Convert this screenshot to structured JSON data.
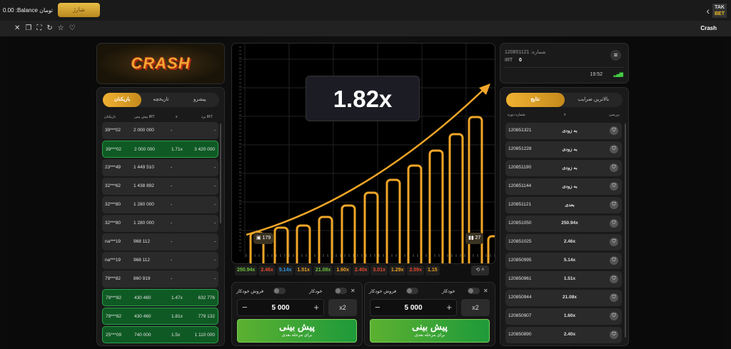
{
  "topbar": {
    "balance": "0.00 :Balance تومان",
    "deposit": "شارژ",
    "logo_top": "TAK",
    "logo_bottom": "BET"
  },
  "toolbar": {
    "game_name": "Crash",
    "icons": [
      "close-icon",
      "copy-icon",
      "fullscreen-icon",
      "refresh-icon",
      "star-icon",
      "heart-icon"
    ]
  },
  "logo_text": "CRASH",
  "players": {
    "tabs": [
      "پیشرو",
      "تاریخچه",
      "بازیکنان"
    ],
    "active_tab": "بازیکنان",
    "headers": {
      "player": "بازیکنان",
      "bet": "پیش بینی IRT",
      "x": "x",
      "win": "برد IRT"
    },
    "rows": [
      {
        "player": "39***02",
        "bet": "2 000 000",
        "x": "-",
        "win": "-",
        "won": false
      },
      {
        "player": "39***02",
        "bet": "2 000 000",
        "x": "1.71x",
        "win": "3 420 000",
        "won": true
      },
      {
        "player": "23***49",
        "bet": "1 449 510",
        "x": "-",
        "win": "-",
        "won": false
      },
      {
        "player": "32***62",
        "bet": "1 438 892",
        "x": "-",
        "win": "-",
        "won": false
      },
      {
        "player": "32***80",
        "bet": "1 280 000",
        "x": "-",
        "win": "-",
        "won": false
      },
      {
        "player": "32***80",
        "bet": "1 280 000",
        "x": "-",
        "win": "-",
        "won": false
      },
      {
        "player": "na***19",
        "bet": "968 112",
        "x": "-",
        "win": "-",
        "won": false
      },
      {
        "player": "na***19",
        "bet": "968 112",
        "x": "-",
        "win": "-",
        "won": false
      },
      {
        "player": "79***82",
        "bet": "860 919",
        "x": "-",
        "win": "-",
        "won": false
      },
      {
        "player": "79***82",
        "bet": "430 460",
        "x": "1.47x",
        "win": "632 776",
        "won": true
      },
      {
        "player": "79***82",
        "bet": "430 460",
        "x": "1.81x",
        "win": "779 132",
        "won": true
      },
      {
        "player": "25***09",
        "bet": "740 000",
        "x": "1.5x",
        "win": "1 110 000",
        "won": true
      }
    ]
  },
  "game": {
    "multiplier": "1.82x",
    "players_count": "179",
    "bets_count": "27",
    "accent": "#f0a628"
  },
  "history": [
    {
      "v": "250.94x",
      "c": "#6cc23a"
    },
    {
      "v": "2.46x",
      "c": "#e5482c"
    },
    {
      "v": "5.14x",
      "c": "#2d9be6"
    },
    {
      "v": "1.51x",
      "c": "#f0a020"
    },
    {
      "v": "21.08x",
      "c": "#6cc23a"
    },
    {
      "v": "1.60x",
      "c": "#f0a020"
    },
    {
      "v": "2.40x",
      "c": "#e5482c"
    },
    {
      "v": "3.01x",
      "c": "#e5482c"
    },
    {
      "v": "1.29x",
      "c": "#f0a020"
    },
    {
      "v": "2.59x",
      "c": "#e5482c"
    },
    {
      "v": "1.15",
      "c": "#f0a020"
    }
  ],
  "bets": [
    {
      "auto": "خودکار",
      "auto_sell": "فروش خودکار",
      "amount": "5 000",
      "double": "x2",
      "button": "پیش بینی",
      "sub": "برای مرحله بعدی"
    },
    {
      "auto": "خودکار",
      "auto_sell": "فروش خودکار",
      "amount": "5 000",
      "double": "x2",
      "button": "پیش بینی",
      "sub": "برای مرحله بعدی"
    }
  ],
  "info": {
    "round": "120851121 :شماره",
    "currency": "IRT",
    "balance": "0",
    "time": "19:52"
  },
  "results": {
    "tabs": [
      "بالاترین ضرایب",
      "نتایج"
    ],
    "active_tab": "نتایج",
    "headers": {
      "round": "شماره دوره",
      "x": "x",
      "verify": "بررسی"
    },
    "rows": [
      {
        "id": "120851321",
        "r": "به زودی"
      },
      {
        "id": "120851228",
        "r": "به زودی"
      },
      {
        "id": "120851190",
        "r": "به زودی"
      },
      {
        "id": "120851144",
        "r": "به زودی"
      },
      {
        "id": "120851121",
        "r": "بعدی"
      },
      {
        "id": "120851050",
        "r": "250.94x"
      },
      {
        "id": "120851025",
        "r": "2.46x"
      },
      {
        "id": "120850995",
        "r": "5.14x"
      },
      {
        "id": "120850961",
        "r": "1.51x"
      },
      {
        "id": "120850944",
        "r": "21.08x"
      },
      {
        "id": "120850907",
        "r": "1.60x"
      },
      {
        "id": "120850890",
        "r": "2.40x"
      }
    ]
  }
}
